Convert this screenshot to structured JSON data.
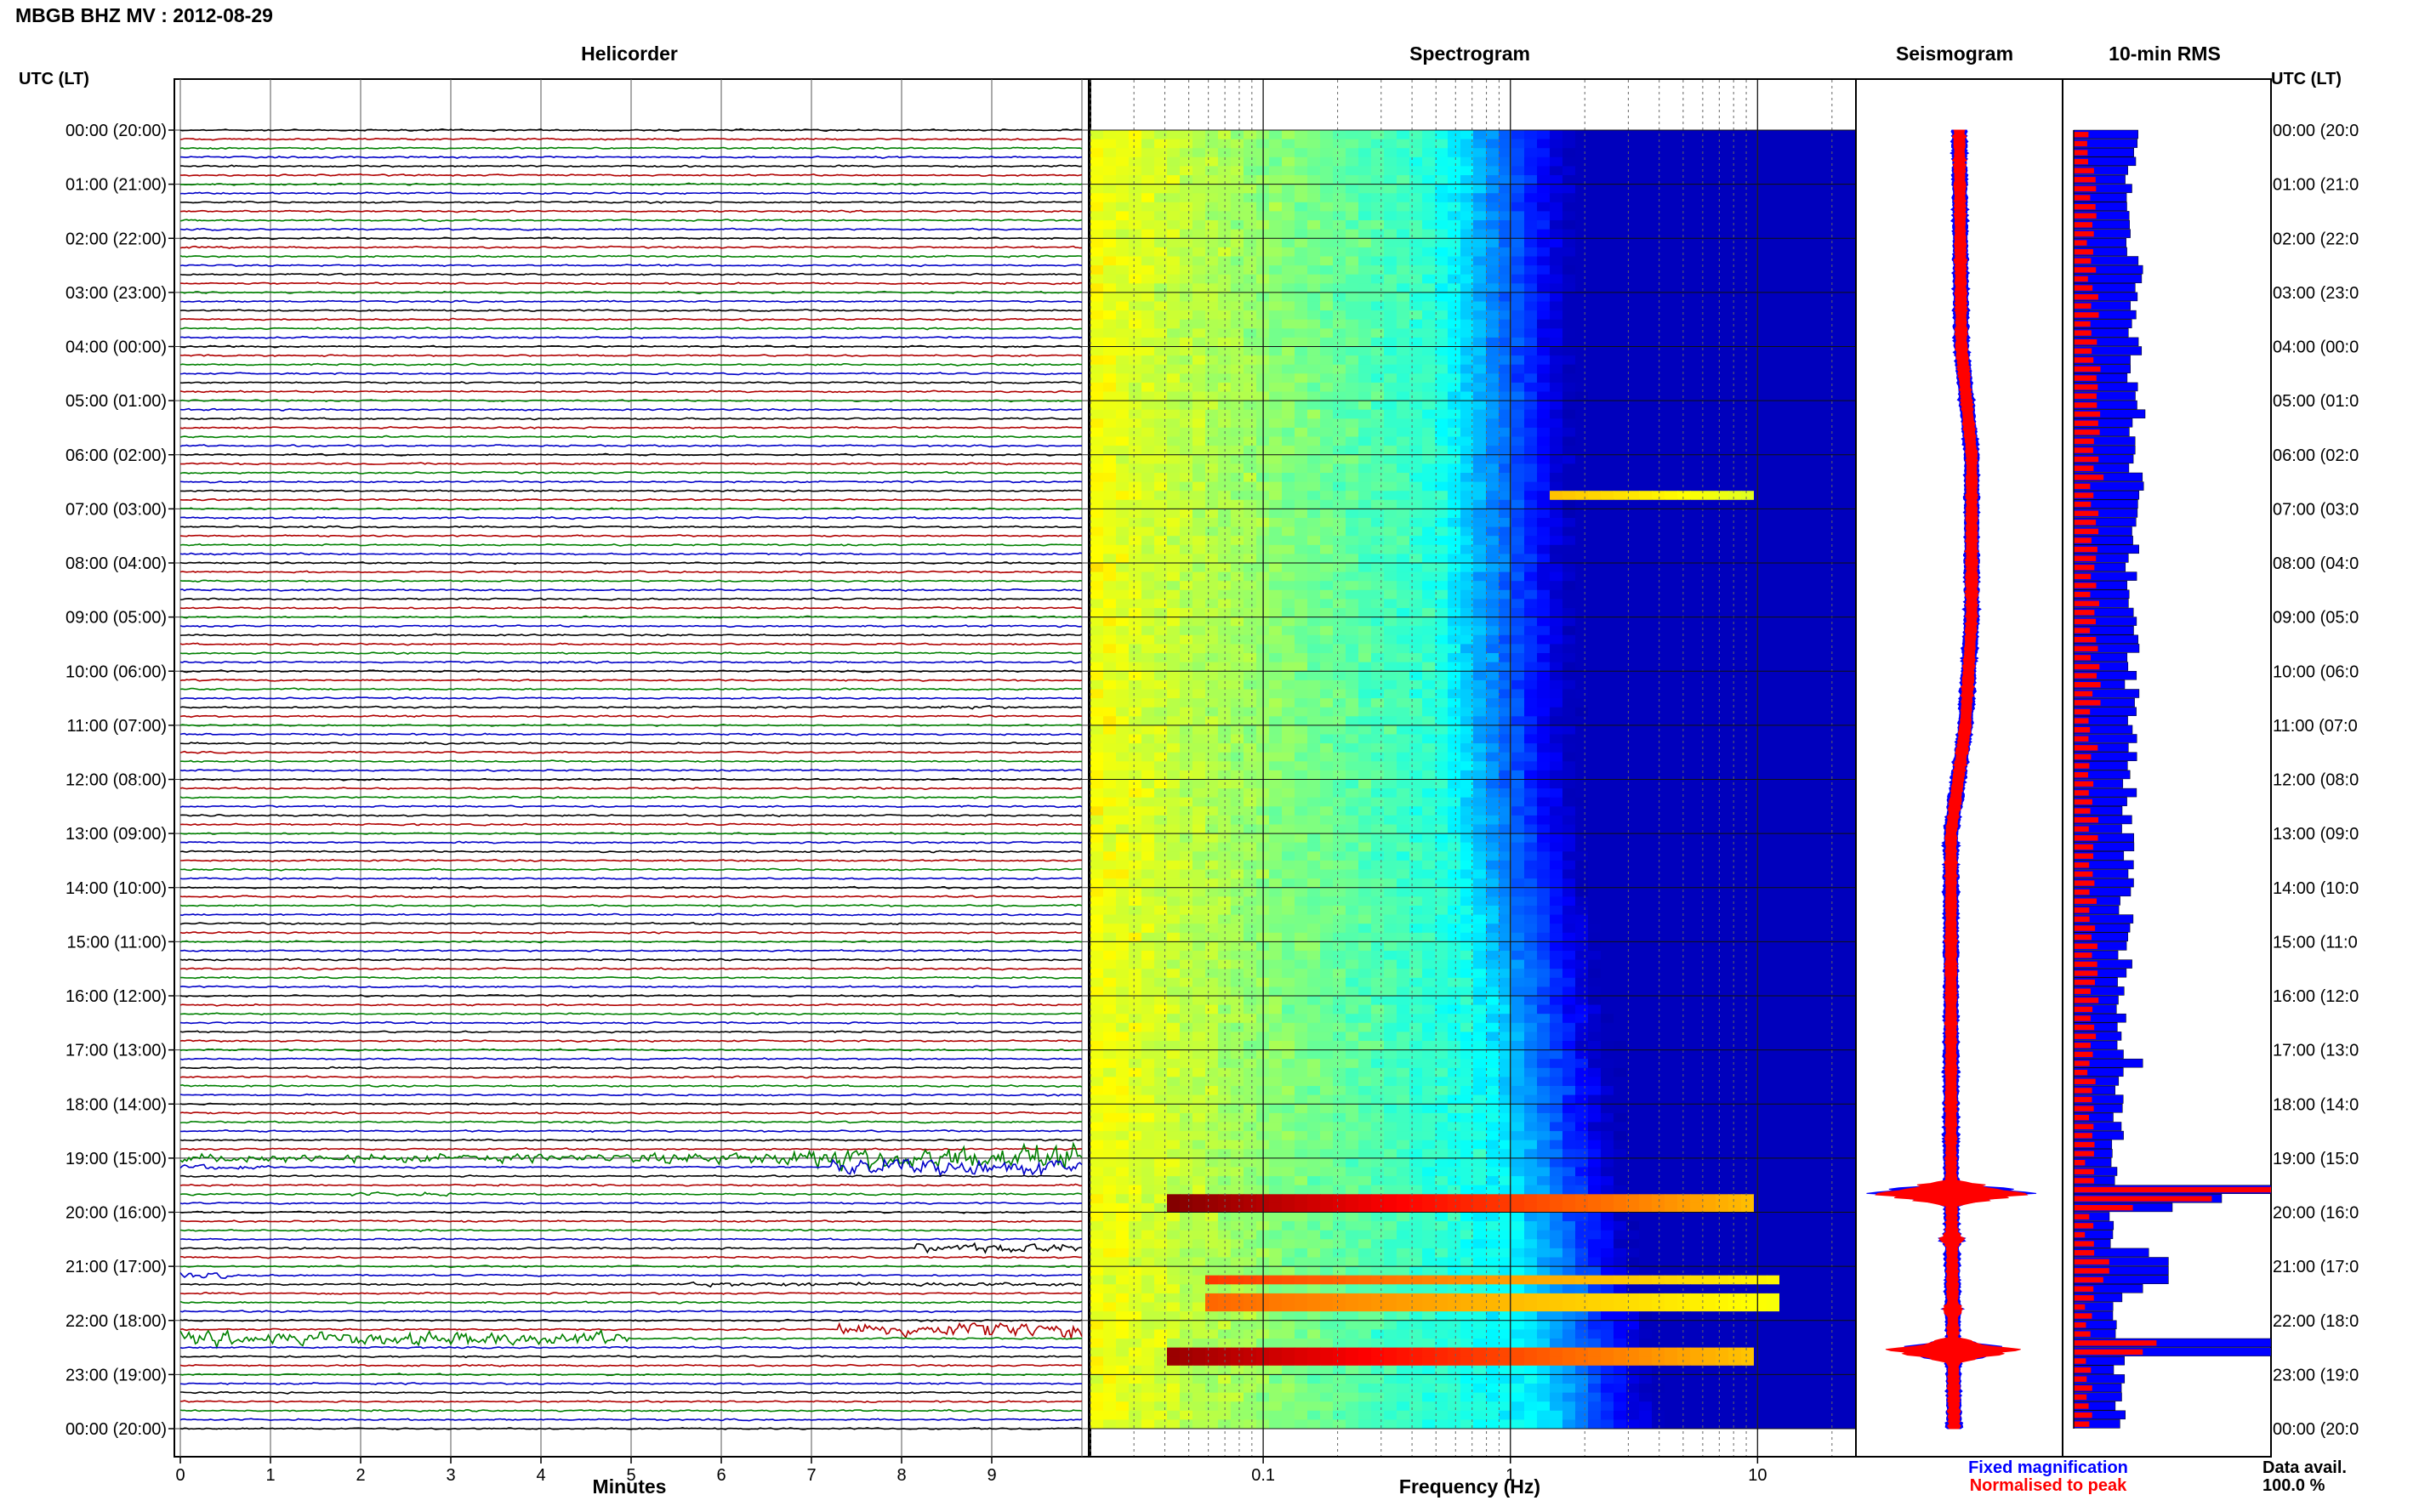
{
  "title": "MBGB BHZ MV : 2012-08-29",
  "colors": {
    "trace_cycle": [
      "#000000",
      "#b00000",
      "#008000",
      "#0000c8"
    ],
    "spec_dark": "#00008b",
    "seis_fixed": "#0000ff",
    "seis_norm": "#ff0000"
  },
  "chart_data": [
    {
      "type": "line",
      "title": "Helicorder",
      "xlabel": "Minutes",
      "xticks": [
        "0",
        "1",
        "2",
        "3",
        "4",
        "5",
        "6",
        "7",
        "8",
        "9"
      ],
      "xlim": [
        0,
        10
      ],
      "left_axis_title": "UTC (LT)",
      "right_axis_title": "UTC (LT)",
      "hour_labels": [
        "00:00 (20:00)",
        "01:00 (21:00)",
        "02:00 (22:00)",
        "03:00 (23:00)",
        "04:00 (00:00)",
        "05:00 (01:00)",
        "06:00 (02:00)",
        "07:00 (03:00)",
        "08:00 (04:00)",
        "09:00 (05:00)",
        "10:00 (06:00)",
        "11:00 (07:00)",
        "12:00 (08:00)",
        "13:00 (09:00)",
        "14:00 (10:00)",
        "15:00 (11:00)",
        "16:00 (12:00)",
        "17:00 (13:00)",
        "18:00 (14:00)",
        "19:00 (15:00)",
        "20:00 (16:00)",
        "21:00 (17:00)",
        "22:00 (18:00)",
        "23:00 (19:00)",
        "00:00 (20:00)"
      ],
      "right_hour_labels": [
        "00:00 (20:0",
        "01:00 (21:0",
        "02:00 (22:0",
        "03:00 (23:0",
        "04:00 (00:0",
        "05:00 (01:0",
        "06:00 (02:0",
        "07:00 (03:0",
        "08:00 (04:0",
        "09:00 (05:0",
        "10:00 (06:0",
        "11:00 (07:0",
        "12:00 (08:0",
        "13:00 (09:0",
        "14:00 (10:0",
        "15:00 (11:0",
        "16:00 (12:0",
        "17:00 (13:0",
        "18:00 (14:0",
        "19:00 (15:0",
        "20:00 (16:0",
        "21:00 (17:0",
        "22:00 (18:0",
        "23:00 (19:0",
        "00:00 (20:0"
      ],
      "traces_per_hour": 6,
      "events": [
        {
          "trace": 64,
          "x_start_min": 8.3,
          "x_end_min": 9.2,
          "amp": 0.25
        },
        {
          "trace": 114,
          "x_start_min": 0.0,
          "x_end_min": 10.0,
          "amp": 0.6
        },
        {
          "trace": 114,
          "x_start_min": 5.1,
          "x_end_min": 6.7,
          "amp": 0.9
        },
        {
          "trace": 114,
          "x_start_min": 6.7,
          "x_end_min": 10.0,
          "amp": 1.8
        },
        {
          "trace": 115,
          "x_start_min": 7.2,
          "x_end_min": 10.0,
          "amp": 1.2
        },
        {
          "trace": 115,
          "x_start_min": 0.0,
          "x_end_min": 1.0,
          "amp": 0.4
        },
        {
          "trace": 118,
          "x_start_min": 1.9,
          "x_end_min": 3.0,
          "amp": 0.25
        },
        {
          "trace": 124,
          "x_start_min": 8.1,
          "x_end_min": 10.0,
          "amp": 0.7
        },
        {
          "trace": 127,
          "x_start_min": 0.0,
          "x_end_min": 0.5,
          "amp": 0.5
        },
        {
          "trace": 128,
          "x_start_min": 5.5,
          "x_end_min": 10.0,
          "amp": 0.3
        },
        {
          "trace": 133,
          "x_start_min": 7.3,
          "x_end_min": 10.0,
          "amp": 1.1
        },
        {
          "trace": 134,
          "x_start_min": 0.0,
          "x_end_min": 5.0,
          "amp": 1.0
        }
      ]
    },
    {
      "type": "heatmap",
      "title": "Spectrogram",
      "xlabel": "Frequency (Hz)",
      "xscale": "log",
      "xlim": [
        0.02,
        25
      ],
      "xticks": [
        "0.1",
        "1",
        "10"
      ],
      "ylim_hours": [
        0,
        24
      ],
      "bright_lines": [
        {
          "hour": 19.75,
          "f_start": 0.04,
          "f_end": 10,
          "strength": 1.0
        },
        {
          "hour": 21.15,
          "f_start": 0.06,
          "f_end": 12,
          "strength": 0.6
        },
        {
          "hour": 21.6,
          "f_start": 0.06,
          "f_end": 12,
          "strength": 0.5
        },
        {
          "hour": 22.55,
          "f_start": 0.04,
          "f_end": 10,
          "strength": 0.95
        },
        {
          "hour": 6.65,
          "f_start": 1.5,
          "f_end": 10,
          "strength": 0.3
        }
      ]
    },
    {
      "type": "line",
      "title": "Seismogram",
      "center_profile": [
        [
          0,
          0
        ],
        [
          4,
          0.02
        ],
        [
          6,
          0.12
        ],
        [
          9,
          0.12
        ],
        [
          11,
          0.06
        ],
        [
          13,
          -0.08
        ],
        [
          16,
          -0.08
        ],
        [
          19,
          -0.08
        ],
        [
          24,
          -0.05
        ]
      ],
      "spikes": [
        {
          "hour": 19.65,
          "amp": 0.9
        },
        {
          "hour": 20.5,
          "amp": 0.15
        },
        {
          "hour": 21.8,
          "amp": 0.12
        },
        {
          "hour": 22.55,
          "amp": 0.7
        }
      ],
      "legend": [
        "Fixed magnification",
        "Normalised to peak"
      ]
    },
    {
      "type": "bar",
      "title": "10-min RMS",
      "orientation": "horizontal",
      "bins_per_hour": 6,
      "rms_fixed_profile": [
        [
          0,
          0.3
        ],
        [
          6,
          0.32
        ],
        [
          12,
          0.28
        ],
        [
          17,
          0.25
        ],
        [
          19,
          0.22
        ],
        [
          19.6,
          0.2
        ],
        [
          24,
          0.24
        ]
      ],
      "rms_norm_profile": [
        [
          0,
          0.08
        ],
        [
          6,
          0.12
        ],
        [
          12,
          0.1
        ],
        [
          17,
          0.1
        ],
        [
          19,
          0.08
        ],
        [
          24,
          0.08
        ]
      ],
      "rms_events": [
        {
          "hour": 19.6,
          "fixed": 1.0,
          "norm": 1.0
        },
        {
          "hour": 19.75,
          "fixed": 0.75,
          "norm": 0.7
        },
        {
          "hour": 19.9,
          "fixed": 0.5,
          "norm": 0.3
        },
        {
          "hour": 20.8,
          "fixed": 0.38,
          "norm": 0.1
        },
        {
          "hour": 21.0,
          "fixed": 0.48,
          "norm": 0.18
        },
        {
          "hour": 21.2,
          "fixed": 0.48,
          "norm": 0.15
        },
        {
          "hour": 21.4,
          "fixed": 0.35,
          "norm": 0.1
        },
        {
          "hour": 22.4,
          "fixed": 1.0,
          "norm": 0.42
        },
        {
          "hour": 22.55,
          "fixed": 1.0,
          "norm": 0.35
        },
        {
          "hour": 17.3,
          "fixed": 0.35,
          "norm": 0.08
        }
      ],
      "footer_label": "Data avail.",
      "footer_value": "100.0 %"
    }
  ]
}
